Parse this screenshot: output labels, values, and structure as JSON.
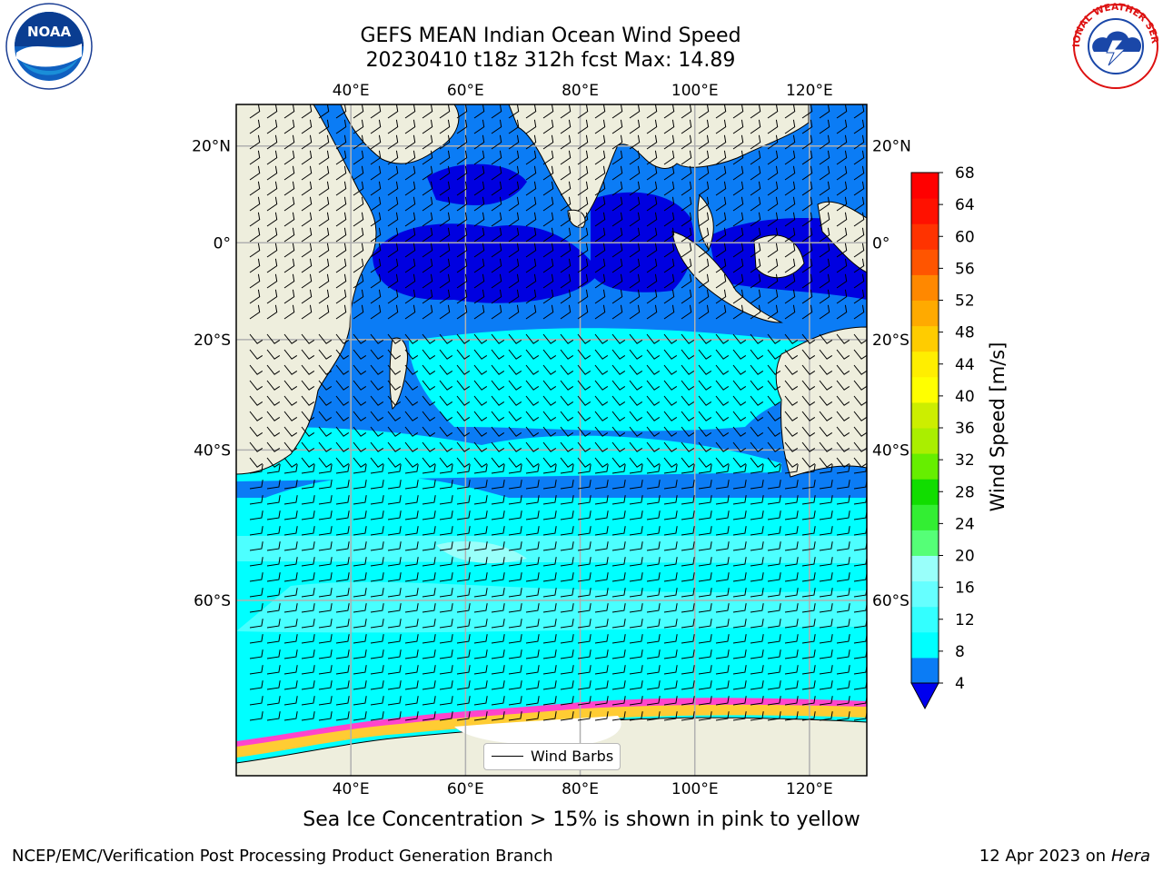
{
  "title": {
    "line1": "GEFS MEAN Indian Ocean Wind Speed",
    "line2": "20230410 t18z 312h fcst   Max: 14.89"
  },
  "map": {
    "lon_labels": [
      "40°E",
      "60°E",
      "80°E",
      "100°E",
      "120°E"
    ],
    "lat_labels": [
      "20°N",
      "0°",
      "20°S",
      "40°S",
      "60°S"
    ],
    "lon_range": [
      20,
      130
    ],
    "lat_range": [
      -74,
      28
    ],
    "legend_label": "Wind Barbs",
    "colors": {
      "land": "#eeeedd",
      "band_4_8": "#0b7cf5",
      "band_below_4": "#0000e0",
      "band_8_12": "#00ffff",
      "band_12_16": "#55ffff",
      "band_16_20": "#99fffa",
      "sea_ice_pink": "#ff44cc",
      "sea_ice_yellow": "#ffcc33"
    }
  },
  "colorbar": {
    "title": "Wind Speed [m/s]",
    "ticks": [
      "4",
      "8",
      "12",
      "16",
      "20",
      "24",
      "28",
      "32",
      "36",
      "40",
      "44",
      "48",
      "52",
      "56",
      "60",
      "64",
      "68"
    ],
    "colors": [
      "#0b7cf5",
      "#00ffff",
      "#33ffff",
      "#66ffff",
      "#99fffa",
      "#55ff77",
      "#33ee33",
      "#11dd00",
      "#66ee00",
      "#aaee00",
      "#ccee00",
      "#ffff00",
      "#ffee00",
      "#ffcc00",
      "#ffaa00",
      "#ff8800",
      "#ff5500",
      "#ff3300",
      "#ff1100",
      "#ff0000"
    ],
    "extend_color": "#0000ee"
  },
  "logos": {
    "noaa_text": "NOAA",
    "nws_text": "NATIONAL WEATHER SERVICE"
  },
  "footer": {
    "sea_ice_note": "Sea Ice Concentration > 15% is shown in pink to yellow",
    "credit": "NCEP/EMC/Verification Post Processing Product Generation Branch",
    "date": "12 Apr 2023 on ",
    "machine": "Hera"
  }
}
